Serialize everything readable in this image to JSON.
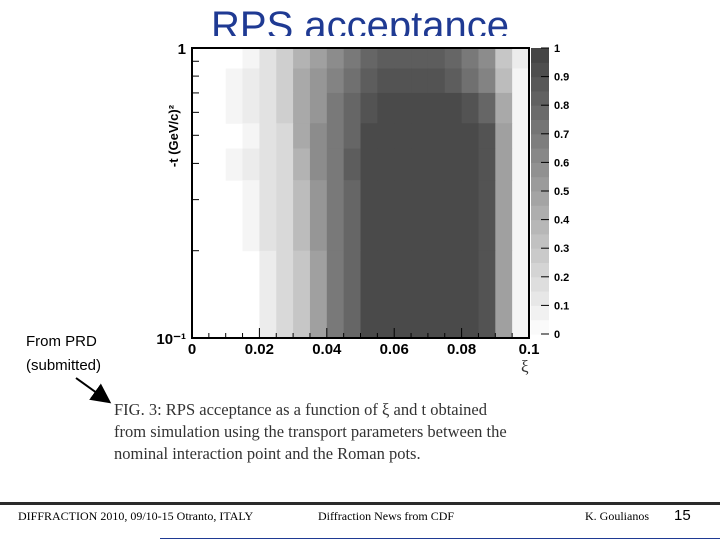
{
  "slide": {
    "title": "RPS acceptance",
    "note_line1": "From PRD",
    "note_line2": "(submitted)",
    "caption_lines": [
      "FIG. 3:  RPS acceptance as a function of ξ and t obtained",
      "from simulation using the transport parameters between the",
      "nominal interaction point and the Roman pots."
    ],
    "footer": {
      "left": "DIFFRACTION 2010, 09/10-15 Otranto, ITALY",
      "center": "Diffraction News from CDF",
      "right": "K. Goulianos",
      "page": "15"
    }
  },
  "chart_data": {
    "type": "heatmap",
    "xlabel": "ξ",
    "ylabel": "-t (GeV/c)²",
    "xlim": [
      0,
      0.1
    ],
    "ylim": [
      0.1,
      1
    ],
    "y_scale": "log",
    "xticks": [
      "0",
      "0.02",
      "0.04",
      "0.06",
      "0.08",
      "0.1"
    ],
    "yticks": [
      "10⁻¹",
      "1"
    ],
    "colorbar": {
      "range": [
        0,
        1
      ],
      "ticks": [
        "0",
        "0.1",
        "0.2",
        "0.3",
        "0.4",
        "0.5",
        "0.6",
        "0.7",
        "0.8",
        "0.9",
        "1"
      ]
    },
    "x_bins": [
      0,
      0.005,
      0.01,
      0.015,
      0.02,
      0.025,
      0.03,
      0.035,
      0.04,
      0.045,
      0.05,
      0.055,
      0.06,
      0.065,
      0.07,
      0.075,
      0.08,
      0.085,
      0.09,
      0.095,
      0.1
    ],
    "t_rows": [
      {
        "t_low": 0.85,
        "t_high": 1.0,
        "values": [
          0,
          0,
          0,
          0.05,
          0.15,
          0.25,
          0.4,
          0.5,
          0.6,
          0.7,
          0.8,
          0.85,
          0.85,
          0.85,
          0.85,
          0.8,
          0.7,
          0.6,
          0.3,
          0.1
        ]
      },
      {
        "t_low": 0.7,
        "t_high": 0.85,
        "values": [
          0,
          0,
          0.05,
          0.1,
          0.15,
          0.25,
          0.45,
          0.55,
          0.65,
          0.75,
          0.85,
          0.9,
          0.9,
          0.9,
          0.9,
          0.85,
          0.75,
          0.65,
          0.35,
          0.05
        ]
      },
      {
        "t_low": 0.55,
        "t_high": 0.7,
        "values": [
          0,
          0,
          0.05,
          0.1,
          0.15,
          0.25,
          0.45,
          0.55,
          0.7,
          0.8,
          0.9,
          0.95,
          0.95,
          0.95,
          0.95,
          0.95,
          0.9,
          0.8,
          0.45,
          0.05
        ]
      },
      {
        "t_low": 0.45,
        "t_high": 0.55,
        "values": [
          0,
          0,
          0,
          0.05,
          0.15,
          0.2,
          0.45,
          0.6,
          0.7,
          0.8,
          0.95,
          0.95,
          0.95,
          0.95,
          0.95,
          0.95,
          0.95,
          0.9,
          0.5,
          0.05
        ]
      },
      {
        "t_low": 0.35,
        "t_high": 0.45,
        "values": [
          0,
          0,
          0.05,
          0.1,
          0.15,
          0.2,
          0.4,
          0.6,
          0.7,
          0.85,
          0.95,
          0.95,
          0.95,
          0.95,
          0.95,
          0.95,
          0.95,
          0.9,
          0.5,
          0.05
        ]
      },
      {
        "t_low": 0.2,
        "t_high": 0.35,
        "values": [
          0,
          0,
          0,
          0.05,
          0.15,
          0.2,
          0.35,
          0.55,
          0.7,
          0.8,
          0.95,
          0.95,
          0.95,
          0.95,
          0.95,
          0.95,
          0.95,
          0.9,
          0.5,
          0.05
        ]
      },
      {
        "t_low": 0.1,
        "t_high": 0.2,
        "values": [
          0,
          0,
          0,
          0,
          0.1,
          0.2,
          0.3,
          0.5,
          0.7,
          0.8,
          0.95,
          0.95,
          0.95,
          0.95,
          0.95,
          0.95,
          0.95,
          0.9,
          0.5,
          0.05
        ]
      }
    ]
  }
}
